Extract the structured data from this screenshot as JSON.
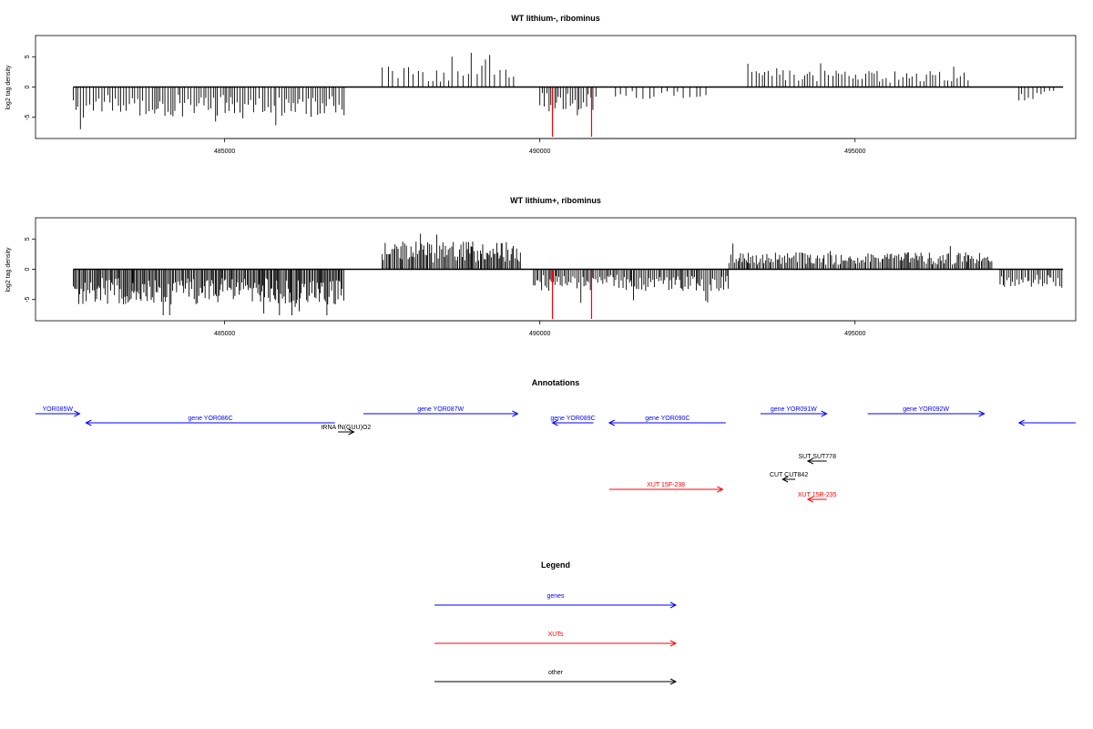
{
  "chart_data": [
    {
      "type": "bar",
      "title": "WT lithium-, ribominus",
      "ylabel": "log2 tag density",
      "xlim": [
        482000,
        498500
      ],
      "ylim": [
        -8.5,
        8.5
      ],
      "x_ticks": [
        "485000",
        "490000",
        "495000"
      ],
      "y_ticks": [
        "-5",
        "0",
        "5"
      ],
      "highlight_x": [
        490200,
        490820
      ],
      "highlight_depth": -8.2,
      "regions": [
        {
          "start": 482600,
          "end": 486900,
          "sign": -1,
          "amp": 5.2,
          "step": 40
        },
        {
          "start": 487500,
          "end": 489600,
          "sign": 1,
          "amp": 3.6,
          "step": 70
        },
        {
          "start": 490000,
          "end": 490900,
          "sign": -1,
          "amp": 3.8,
          "step": 35
        },
        {
          "start": 491200,
          "end": 492700,
          "sign": -1,
          "amp": 2.0,
          "step": 90
        },
        {
          "start": 493300,
          "end": 496800,
          "sign": 1,
          "amp": 2.8,
          "step": 55
        },
        {
          "start": 497600,
          "end": 498200,
          "sign": -1,
          "amp": 2.4,
          "step": 60
        }
      ]
    },
    {
      "type": "bar",
      "title": "WT lithium+, ribominus",
      "ylabel": "log2 tag density",
      "xlim": [
        482000,
        498500
      ],
      "ylim": [
        -8.5,
        8.5
      ],
      "x_ticks": [
        "485000",
        "490000",
        "495000"
      ],
      "y_ticks": [
        "-5",
        "0",
        "5"
      ],
      "highlight_x": [
        490200,
        490820
      ],
      "highlight_depth": -8.2,
      "regions": [
        {
          "start": 482600,
          "end": 486900,
          "sign": -1,
          "amp": 5.8,
          "step": 20
        },
        {
          "start": 487500,
          "end": 489700,
          "sign": 1,
          "amp": 4.6,
          "step": 22
        },
        {
          "start": 489900,
          "end": 493000,
          "sign": -1,
          "amp": 3.6,
          "step": 25
        },
        {
          "start": 493000,
          "end": 497200,
          "sign": 1,
          "amp": 2.8,
          "step": 25
        },
        {
          "start": 497300,
          "end": 498300,
          "sign": -1,
          "amp": 3.0,
          "step": 30
        }
      ]
    }
  ],
  "annotations": {
    "title": "Annotations",
    "items": [
      {
        "label": "YOR085W",
        "start": 482000,
        "end": 482700,
        "dir": 1,
        "color": "#0000ff",
        "row": 0
      },
      {
        "label": "gene YOR086C",
        "start": 482800,
        "end": 486750,
        "dir": -1,
        "color": "#0000ff",
        "row": 1
      },
      {
        "label": "gene YOR087W",
        "start": 487200,
        "end": 489650,
        "dir": 1,
        "color": "#0000ff",
        "row": 0
      },
      {
        "label": "gene YOR089C",
        "start": 490200,
        "end": 490850,
        "dir": -1,
        "color": "#0000ff",
        "row": 1
      },
      {
        "label": "gene YOR090C",
        "start": 491100,
        "end": 492950,
        "dir": -1,
        "color": "#0000ff",
        "row": 1
      },
      {
        "label": "gene YOR091W",
        "start": 493500,
        "end": 494550,
        "dir": 1,
        "color": "#0000ff",
        "row": 0
      },
      {
        "label": "gene YOR092W",
        "start": 495200,
        "end": 497050,
        "dir": 1,
        "color": "#0000ff",
        "row": 0
      },
      {
        "label": "",
        "start": 497600,
        "end": 498500,
        "dir": -1,
        "color": "#0000ff",
        "row": 1
      },
      {
        "label": "tRNA fN(GUU)O2",
        "start": 486800,
        "end": 487050,
        "dir": 1,
        "color": "#000000",
        "row": 2
      },
      {
        "label": "SUT SUT778",
        "start": 494250,
        "end": 494550,
        "dir": -1,
        "color": "#000000",
        "row": 4
      },
      {
        "label": "CUT CUT842",
        "start": 493850,
        "end": 494050,
        "dir": -1,
        "color": "#000000",
        "row": 6
      },
      {
        "label": "XUT 15F-238",
        "start": 491100,
        "end": 492900,
        "dir": 1,
        "color": "#ff0000",
        "row": 7
      },
      {
        "label": "XUT 15R-235",
        "start": 494250,
        "end": 494550,
        "dir": -1,
        "color": "#ff0000",
        "row": 8
      }
    ]
  },
  "legend": {
    "title": "Legend",
    "items": [
      {
        "label": "genes",
        "color": "#0000ff"
      },
      {
        "label": "XUTs",
        "color": "#ff0000"
      },
      {
        "label": "other",
        "color": "#000000"
      }
    ]
  }
}
